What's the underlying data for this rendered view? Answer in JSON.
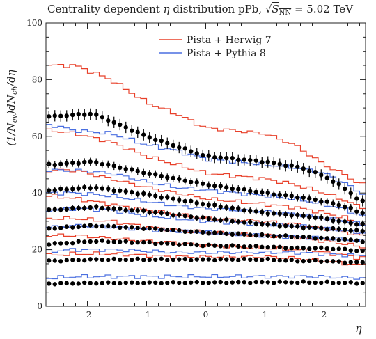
{
  "chart_data": {
    "type": "line",
    "title_parts": {
      "prefix": "Centrality dependent ",
      "eta": "η",
      "middle": " distribution pPb, ",
      "sqrt_symbol": "√",
      "sqrt_var": "S",
      "sqrt_sub": "NN",
      "suffix": " = 5.02 TeV"
    },
    "ylabel_parts": {
      "a": "(1/N",
      "a_sub": "ev",
      "b": ")dN",
      "b_sub": "ch",
      "c": "/dη"
    },
    "xlabel": "η",
    "xlim": [
      -2.7,
      2.7
    ],
    "ylim": [
      0,
      100
    ],
    "x_ticks": [
      -2,
      -1,
      0,
      1,
      2
    ],
    "x_tick_labels": [
      "-2",
      "-1",
      "0",
      "1",
      "2"
    ],
    "y_ticks": [
      0,
      20,
      40,
      60,
      80,
      100
    ],
    "y_tick_labels": [
      "0",
      "20",
      "40",
      "60",
      "80",
      "100"
    ],
    "legend": {
      "placement": "top-center",
      "entries": [
        {
          "label": "Pista + Herwig 7",
          "color": "#e8402a"
        },
        {
          "label": "Pista + Pythia 8",
          "color": "#4a6fe0"
        }
      ]
    },
    "colors": {
      "herwig": "#e8402a",
      "pythia": "#4a6fe0",
      "data": "#000000"
    },
    "x": [
      -2.65,
      -2.55,
      -2.45,
      -2.35,
      -2.25,
      -2.15,
      -2.05,
      -1.95,
      -1.85,
      -1.75,
      -1.65,
      -1.55,
      -1.45,
      -1.35,
      -1.25,
      -1.15,
      -1.05,
      -0.95,
      -0.85,
      -0.75,
      -0.65,
      -0.55,
      -0.45,
      -0.35,
      -0.25,
      -0.15,
      -0.05,
      0.05,
      0.15,
      0.25,
      0.35,
      0.45,
      0.55,
      0.65,
      0.75,
      0.85,
      0.95,
      1.05,
      1.15,
      1.25,
      1.35,
      1.45,
      1.55,
      1.65,
      1.75,
      1.85,
      1.95,
      2.05,
      2.15,
      2.25,
      2.35,
      2.45,
      2.55,
      2.65
    ],
    "series": [
      {
        "kind": "data",
        "anchors": {
          "x": [
            -2.6,
            -1.9,
            -1.0,
            0.0,
            1.0,
            1.6,
            2.0,
            2.4,
            2.6
          ],
          "y": [
            67,
            68,
            60,
            53,
            51,
            49,
            46,
            41,
            37
          ]
        },
        "err": 2.0
      },
      {
        "kind": "data",
        "anchors": {
          "x": [
            -2.6,
            -1.9,
            -1.0,
            0.0,
            1.0,
            1.6,
            2.0,
            2.4,
            2.6
          ],
          "y": [
            50,
            51,
            47,
            43,
            40,
            38.5,
            37,
            35,
            33
          ]
        },
        "err": 1.4
      },
      {
        "kind": "data",
        "anchors": {
          "x": [
            -2.6,
            -1.9,
            -1.0,
            0.0,
            1.0,
            1.6,
            2.0,
            2.4,
            2.6
          ],
          "y": [
            41,
            42,
            39.5,
            36,
            33,
            32,
            31,
            29.5,
            29
          ]
        },
        "err": 1.2
      },
      {
        "kind": "data",
        "anchors": {
          "x": [
            -2.6,
            -1.9,
            -1.0,
            0.0,
            1.0,
            1.6,
            2.0,
            2.4,
            2.6
          ],
          "y": [
            34,
            35,
            33.5,
            31,
            29,
            28,
            27.5,
            27,
            26.5
          ]
        },
        "err": 1.0
      },
      {
        "kind": "data",
        "anchors": {
          "x": [
            -2.6,
            -1.9,
            -1.0,
            0.0,
            1.0,
            1.6,
            2.0,
            2.4,
            2.6
          ],
          "y": [
            27.5,
            28.5,
            27.5,
            26,
            25,
            24.5,
            24,
            23.5,
            23
          ]
        },
        "err": 0.8
      },
      {
        "kind": "data",
        "anchors": {
          "x": [
            -2.6,
            -1.9,
            -1.0,
            0.0,
            1.0,
            1.6,
            2.0,
            2.4,
            2.6
          ],
          "y": [
            22,
            23,
            22.5,
            21.5,
            21,
            20.5,
            20.5,
            20,
            19.5
          ]
        },
        "err": 0.6
      },
      {
        "kind": "data",
        "anchors": {
          "x": [
            -2.6,
            -1.9,
            -1.0,
            0.0,
            1.0,
            1.6,
            2.0,
            2.4,
            2.6
          ],
          "y": [
            16,
            16.5,
            16.5,
            16.5,
            16.5,
            16,
            16,
            15.5,
            15.5
          ]
        },
        "err": 0.5
      },
      {
        "kind": "data",
        "anchors": {
          "x": [
            -2.6,
            -1.9,
            -1.0,
            0.0,
            1.0,
            1.6,
            2.0,
            2.4,
            2.6
          ],
          "y": [
            8,
            8.2,
            8.3,
            8.4,
            8.5,
            8.5,
            8.4,
            8.3,
            8.2
          ]
        },
        "err": 0.3
      },
      {
        "kind": "herwig",
        "anchors": {
          "x": [
            -2.6,
            -2.2,
            -1.6,
            -1.0,
            -0.5,
            0.0,
            0.5,
            1.0,
            1.5,
            2.0,
            2.4,
            2.6
          ],
          "y": [
            85,
            85,
            80,
            72,
            68,
            63,
            62,
            61,
            57,
            50,
            46,
            43
          ]
        }
      },
      {
        "kind": "herwig",
        "anchors": {
          "x": [
            -2.6,
            -2.2,
            -1.6,
            -1.0,
            -0.5,
            0.0,
            0.5,
            1.0,
            1.5,
            2.0,
            2.4,
            2.6
          ],
          "y": [
            62,
            61,
            58,
            53,
            50,
            47,
            46,
            45,
            43,
            40,
            37,
            35
          ]
        }
      },
      {
        "kind": "herwig",
        "anchors": {
          "x": [
            -2.6,
            -2.2,
            -1.6,
            -1.0,
            -0.5,
            0.0,
            0.5,
            1.0,
            1.5,
            2.0,
            2.4,
            2.6
          ],
          "y": [
            48,
            48,
            45,
            42,
            40,
            38,
            37,
            36,
            35,
            33,
            31,
            29
          ]
        }
      },
      {
        "kind": "herwig",
        "anchors": {
          "x": [
            -2.6,
            -2.2,
            -1.6,
            -1.0,
            -0.5,
            0.0,
            0.5,
            1.0,
            1.5,
            2.0,
            2.4,
            2.6
          ],
          "y": [
            39,
            38,
            36,
            34,
            32.5,
            31,
            30.5,
            30,
            29,
            27.5,
            26,
            25
          ]
        }
      },
      {
        "kind": "herwig",
        "anchors": {
          "x": [
            -2.6,
            -2.2,
            -1.6,
            -1.0,
            -0.5,
            0.0,
            0.5,
            1.0,
            1.5,
            2.0,
            2.4,
            2.6
          ],
          "y": [
            31,
            31,
            30,
            28,
            27,
            26,
            25.5,
            25,
            24.5,
            23,
            22,
            21
          ]
        }
      },
      {
        "kind": "herwig",
        "anchors": {
          "x": [
            -2.6,
            -2.2,
            -1.6,
            -1.0,
            -0.5,
            0.0,
            0.5,
            1.0,
            1.5,
            2.0,
            2.4,
            2.6
          ],
          "y": [
            25,
            25,
            24,
            23,
            22.5,
            21.5,
            21,
            20.5,
            20,
            19,
            18,
            17
          ]
        }
      },
      {
        "kind": "herwig",
        "anchors": {
          "x": [
            -2.6,
            -2.2,
            -1.6,
            -1.0,
            -0.5,
            0.0,
            0.5,
            1.0,
            1.5,
            2.0,
            2.4,
            2.6
          ],
          "y": [
            18,
            18.5,
            18.5,
            18,
            17.5,
            17.5,
            17.5,
            17.5,
            17,
            16,
            15,
            14.5
          ]
        }
      },
      {
        "kind": "pythia",
        "anchors": {
          "x": [
            -2.6,
            -2.2,
            -1.6,
            -1.0,
            -0.5,
            0.0,
            0.5,
            1.0,
            1.5,
            2.0,
            2.4,
            2.6
          ],
          "y": [
            64,
            62,
            61,
            57,
            55,
            52,
            51,
            50,
            49,
            47,
            43,
            40
          ]
        }
      },
      {
        "kind": "pythia",
        "anchors": {
          "x": [
            -2.6,
            -2.2,
            -1.6,
            -1.0,
            -0.5,
            0.0,
            0.5,
            1.0,
            1.5,
            2.0,
            2.4,
            2.6
          ],
          "y": [
            48,
            48,
            47,
            44,
            42,
            41,
            40,
            39,
            38,
            36,
            34,
            32
          ]
        }
      },
      {
        "kind": "pythia",
        "anchors": {
          "x": [
            -2.6,
            -2.2,
            -1.6,
            -1.0,
            -0.5,
            0.0,
            0.5,
            1.0,
            1.5,
            2.0,
            2.4,
            2.6
          ],
          "y": [
            40,
            40,
            39,
            37,
            35.5,
            34.5,
            34,
            33.5,
            32.5,
            31,
            30,
            29
          ]
        }
      },
      {
        "kind": "pythia",
        "anchors": {
          "x": [
            -2.6,
            -2.2,
            -1.6,
            -1.0,
            -0.5,
            0.0,
            0.5,
            1.0,
            1.5,
            2.0,
            2.4,
            2.6
          ],
          "y": [
            34,
            34.5,
            34,
            32,
            31,
            30,
            29.5,
            29,
            28.5,
            27.5,
            26.5,
            26
          ]
        }
      },
      {
        "kind": "pythia",
        "anchors": {
          "x": [
            -2.6,
            -2.2,
            -1.6,
            -1.0,
            -0.5,
            0.0,
            0.5,
            1.0,
            1.5,
            2.0,
            2.4,
            2.6
          ],
          "y": [
            28,
            28.5,
            28,
            27,
            26.5,
            26,
            25.5,
            25,
            24.5,
            24,
            23.5,
            23
          ]
        }
      },
      {
        "kind": "pythia",
        "anchors": {
          "x": [
            -2.6,
            -2.2,
            -1.6,
            -1.0,
            -0.5,
            0.0,
            0.5,
            1.0,
            1.5,
            2.0,
            2.4,
            2.6
          ],
          "y": [
            19.5,
            20,
            20,
            19.5,
            19,
            19,
            19,
            19,
            19,
            18.5,
            18,
            18
          ]
        }
      },
      {
        "kind": "pythia",
        "anchors": {
          "x": [
            -2.6,
            -2.2,
            -1.6,
            -1.0,
            -0.5,
            0.0,
            0.5,
            1.0,
            1.5,
            2.0,
            2.4,
            2.6
          ],
          "y": [
            10,
            10.5,
            10.5,
            10.5,
            10.5,
            10.5,
            10.5,
            10.5,
            10.5,
            10.5,
            10,
            10
          ]
        }
      }
    ]
  }
}
